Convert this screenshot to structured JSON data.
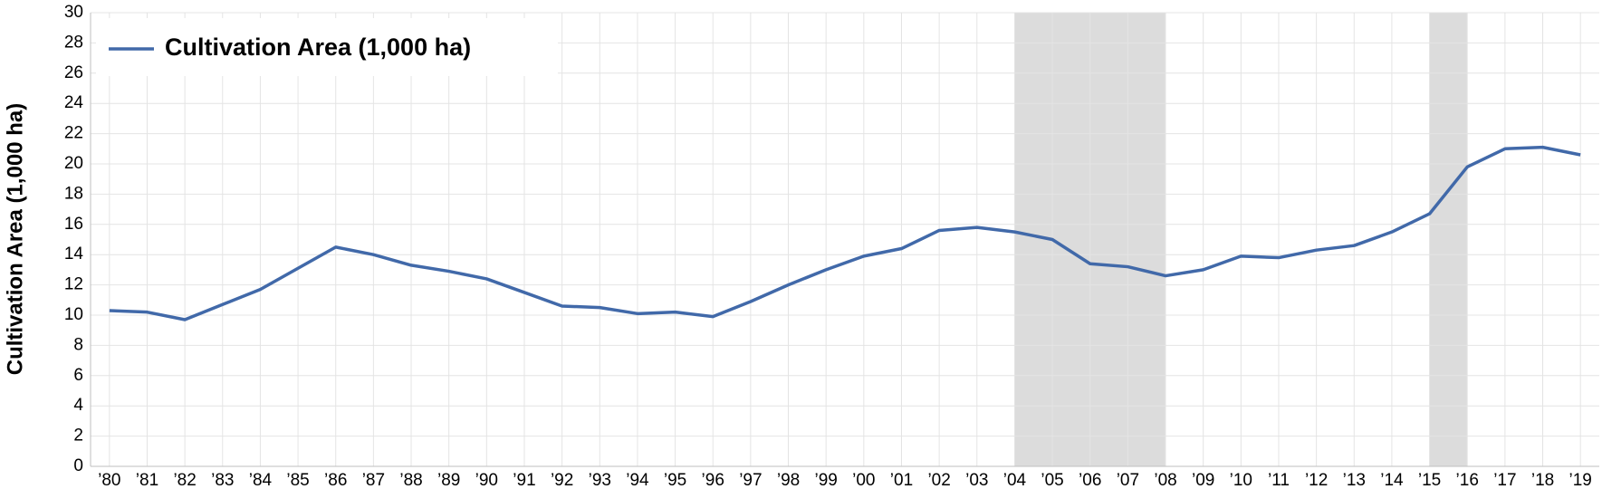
{
  "chart_data": {
    "type": "line",
    "ylabel": "Cultivation Area (1,000 ha)",
    "categories": [
      "’80",
      "’81",
      "’82",
      "’83",
      "’84",
      "’85",
      "’86",
      "’87",
      "’88",
      "’89",
      "’90",
      "’91",
      "’92",
      "’93",
      "’94",
      "’95",
      "’96",
      "’97",
      "’98",
      "’99",
      "’00",
      "’01",
      "’02",
      "’03",
      "’04",
      "’05",
      "’06",
      "’07",
      "’08",
      "’09",
      "’10",
      "’11",
      "’12",
      "’13",
      "’14",
      "’15",
      "’16",
      "’17",
      "’18",
      "’19"
    ],
    "series": [
      {
        "name": "Cultivation Area (1,000 ha)",
        "color": "#4169a9",
        "values": [
          10.3,
          10.2,
          9.7,
          10.7,
          11.7,
          13.1,
          14.5,
          14.0,
          13.3,
          12.9,
          12.4,
          11.5,
          10.6,
          10.5,
          10.1,
          10.2,
          9.9,
          10.9,
          12.0,
          13.0,
          13.9,
          14.4,
          15.6,
          15.8,
          15.5,
          15.0,
          13.4,
          13.2,
          12.6,
          13.0,
          13.9,
          13.8,
          14.3,
          14.6,
          15.5,
          16.7,
          19.8,
          21.0,
          21.1,
          20.6
        ]
      }
    ],
    "shaded": [
      {
        "from": "’04",
        "to": "’08",
        "color": "#dcdcdc"
      },
      {
        "from": "’15",
        "to": "’16",
        "color": "#dcdcdc"
      }
    ],
    "ylim": [
      0,
      30
    ],
    "yticks": [
      0,
      2,
      4,
      6,
      8,
      10,
      12,
      14,
      16,
      18,
      20,
      22,
      24,
      26,
      28,
      30
    ],
    "grid": true,
    "legend": "upper left"
  }
}
